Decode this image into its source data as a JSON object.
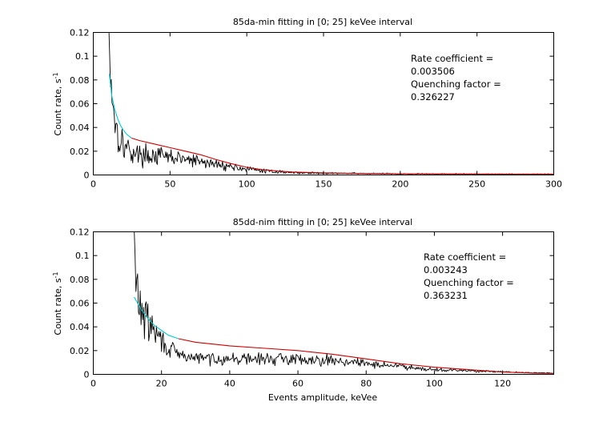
{
  "chart_data": [
    {
      "type": "line",
      "title": "85da-min fitting in [0; 25] keVee interval",
      "xlabel": "",
      "ylabel": "Count rate, s",
      "ylabel_sup": "-1",
      "xlim": [
        0,
        300
      ],
      "ylim": [
        0,
        0.12
      ],
      "xticks": [
        0,
        50,
        100,
        150,
        200,
        250,
        300
      ],
      "yticks": [
        0,
        0.02,
        0.04,
        0.06,
        0.08,
        0.1,
        0.12
      ],
      "xtick_labels": [
        "0",
        "50",
        "100",
        "150",
        "200",
        "250",
        "300"
      ],
      "ytick_labels": [
        "0",
        "0.02",
        "0.04",
        "0.06",
        "0.08",
        "0.1",
        "0.12"
      ],
      "grid": false,
      "annotation": [
        "Rate coefficient =",
        "0.003506",
        "Quenching factor =",
        "0.326227"
      ],
      "series": [
        {
          "color": "#000000",
          "x_start": 10.2,
          "x_end": 300,
          "x_step": 0.5,
          "noise_seed": 17,
          "envelope_x": [
            10.2,
            11,
            12,
            13,
            14,
            15,
            17,
            20,
            25,
            30,
            40,
            50,
            60,
            70,
            80,
            90,
            100,
            110,
            130,
            150,
            200,
            250,
            300
          ],
          "envelope_y": [
            0.12,
            0.1,
            0.075,
            0.06,
            0.05,
            0.04,
            0.032,
            0.025,
            0.019,
            0.017,
            0.016,
            0.015,
            0.013,
            0.011,
            0.009,
            0.007,
            0.005,
            0.0035,
            0.002,
            0.0015,
            0.001,
            0.0008,
            0.0007
          ],
          "noise_fraction": 0.45
        },
        {
          "color": "#00cccc",
          "x": [
            10.5,
            12,
            14,
            16,
            18,
            20,
            22,
            24,
            25
          ],
          "y": [
            0.085,
            0.067,
            0.055,
            0.047,
            0.041,
            0.037,
            0.034,
            0.032,
            0.031
          ]
        },
        {
          "color": "#cc0000",
          "x": [
            25,
            30,
            40,
            50,
            60,
            70,
            80,
            90,
            100,
            110,
            120,
            130,
            150,
            175,
            200,
            250,
            300
          ],
          "y": [
            0.031,
            0.029,
            0.026,
            0.023,
            0.02,
            0.017,
            0.013,
            0.0095,
            0.0065,
            0.0045,
            0.0033,
            0.0025,
            0.0017,
            0.0012,
            0.001,
            0.0008,
            0.0007
          ]
        }
      ]
    },
    {
      "type": "line",
      "title": "85dd-nim fitting in [0; 25] keVee interval",
      "xlabel": "Events amplitude, keVee",
      "ylabel": "Count rate, s",
      "ylabel_sup": "-1",
      "xlim": [
        0,
        135
      ],
      "ylim": [
        0,
        0.12
      ],
      "xticks": [
        0,
        20,
        40,
        60,
        80,
        100,
        120
      ],
      "yticks": [
        0,
        0.02,
        0.04,
        0.06,
        0.08,
        0.1,
        0.12
      ],
      "xtick_labels": [
        "0",
        "20",
        "40",
        "60",
        "80",
        "100",
        "120"
      ],
      "ytick_labels": [
        "0",
        "0.02",
        "0.04",
        "0.06",
        "0.08",
        "0.1",
        "0.12"
      ],
      "grid": false,
      "annotation": [
        "Rate coefficient =",
        "0.003243",
        "Quenching factor =",
        "0.363231"
      ],
      "series": [
        {
          "color": "#000000",
          "x_start": 12,
          "x_end": 135,
          "x_step": 0.25,
          "noise_seed": 29,
          "envelope_x": [
            12,
            12.5,
            13,
            14,
            15,
            17,
            19,
            21,
            23,
            25,
            30,
            40,
            50,
            60,
            70,
            80,
            90,
            100,
            110,
            120,
            135
          ],
          "envelope_y": [
            0.108,
            0.075,
            0.07,
            0.055,
            0.048,
            0.04,
            0.032,
            0.025,
            0.02,
            0.016,
            0.014,
            0.013,
            0.013,
            0.013,
            0.012,
            0.009,
            0.007,
            0.004,
            0.003,
            0.002,
            0.001
          ],
          "noise_fraction": 0.35
        },
        {
          "color": "#00cccc",
          "x": [
            12,
            14,
            16,
            18,
            20,
            22,
            24,
            25
          ],
          "y": [
            0.065,
            0.055,
            0.047,
            0.041,
            0.037,
            0.033,
            0.031,
            0.03
          ]
        },
        {
          "color": "#cc0000",
          "x": [
            25,
            30,
            40,
            50,
            60,
            70,
            80,
            90,
            100,
            110,
            120,
            130,
            135
          ],
          "y": [
            0.03,
            0.027,
            0.024,
            0.022,
            0.02,
            0.017,
            0.013,
            0.009,
            0.006,
            0.004,
            0.002,
            0.001,
            0.0008
          ]
        }
      ]
    }
  ]
}
